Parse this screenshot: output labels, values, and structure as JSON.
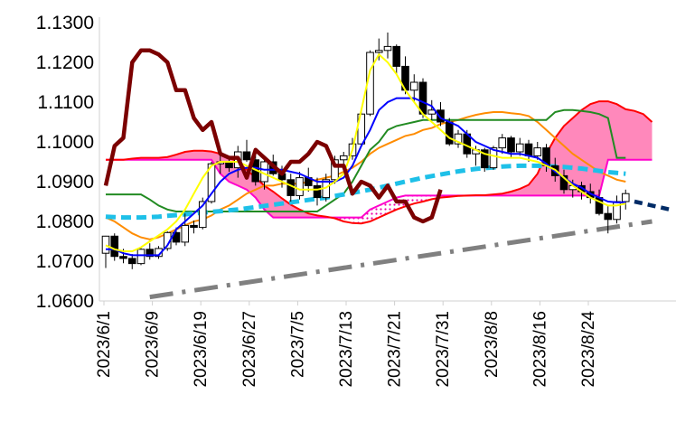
{
  "chart_data": {
    "type": "candlestick-ichimoku",
    "title": "",
    "xlabel": "",
    "ylabel": "",
    "ylim": [
      1.06,
      1.13
    ],
    "y_ticks": [
      "1.0600",
      "1.0700",
      "1.0800",
      "1.0900",
      "1.1000",
      "1.1100",
      "1.1200",
      "1.1300"
    ],
    "x_ticks": [
      "2023/6/1",
      "2023/6/9",
      "2023/6/19",
      "2023/6/27",
      "2023/7/5",
      "2023/7/13",
      "2023/7/21",
      "2023/7/31",
      "2023/8/8",
      "2023/8/16",
      "2023/8/24"
    ],
    "grid": false,
    "colors": {
      "candle_up": "#ffffff",
      "candle_down": "#000000",
      "conversion_line": "#ffff00",
      "base_line": "#0000ff",
      "lagging_span": "#7b0000",
      "leading_span_a": "#ff0000",
      "leading_span_b": "#ff00cc",
      "cloud_fill": "#ff88bb",
      "ma_short": "#ff8c00",
      "ma_mid": "#228b22",
      "ma_long": "#1ec0e8",
      "trend_line": "#808080",
      "projection": "#002b66"
    },
    "candles": [
      [
        1.072,
        1.0764,
        1.0683,
        1.0763
      ],
      [
        1.0763,
        1.077,
        1.0701,
        1.0712
      ],
      [
        1.0712,
        1.0731,
        1.0695,
        1.0707
      ],
      [
        1.0707,
        1.0718,
        1.068,
        1.0694
      ],
      [
        1.0694,
        1.0735,
        1.069,
        1.073
      ],
      [
        1.073,
        1.0745,
        1.0704,
        1.0712
      ],
      [
        1.0712,
        1.0738,
        1.0706,
        1.0732
      ],
      [
        1.0732,
        1.0775,
        1.0726,
        1.0772
      ],
      [
        1.0772,
        1.0785,
        1.074,
        1.0748
      ],
      [
        1.0748,
        1.082,
        1.0738,
        1.079
      ],
      [
        1.079,
        1.0802,
        1.077,
        1.0785
      ],
      [
        1.0785,
        1.086,
        1.078,
        1.085
      ],
      [
        1.085,
        1.095,
        1.0845,
        1.0945
      ],
      [
        1.0945,
        1.0965,
        1.092,
        1.095
      ],
      [
        1.095,
        1.096,
        1.0925,
        1.0935
      ],
      [
        1.0935,
        1.099,
        1.091,
        1.0975
      ],
      [
        1.0975,
        1.1005,
        1.095,
        1.0955
      ],
      [
        1.0955,
        1.097,
        1.089,
        1.09
      ],
      [
        1.09,
        1.096,
        1.088,
        1.095
      ],
      [
        1.095,
        1.0968,
        1.0915,
        1.092
      ],
      [
        1.092,
        1.094,
        1.0885,
        1.0905
      ],
      [
        1.0905,
        1.092,
        1.085,
        1.0865
      ],
      [
        1.0865,
        1.0925,
        1.0855,
        1.091
      ],
      [
        1.091,
        1.0935,
        1.0875,
        1.089
      ],
      [
        1.089,
        1.091,
        1.084,
        1.086
      ],
      [
        1.086,
        1.092,
        1.085,
        1.0905
      ],
      [
        1.0905,
        1.0965,
        1.0895,
        1.0955
      ],
      [
        1.0955,
        1.0975,
        1.0935,
        1.0965
      ],
      [
        1.0965,
        1.101,
        1.0955,
        1.0995
      ],
      [
        1.0995,
        1.108,
        1.099,
        1.107
      ],
      [
        1.107,
        1.123,
        1.1065,
        1.1225
      ],
      [
        1.1225,
        1.126,
        1.1205,
        1.123
      ],
      [
        1.123,
        1.1275,
        1.121,
        1.124
      ],
      [
        1.124,
        1.1245,
        1.117,
        1.119
      ],
      [
        1.119,
        1.1215,
        1.112,
        1.113
      ],
      [
        1.113,
        1.117,
        1.11,
        1.115
      ],
      [
        1.115,
        1.116,
        1.106,
        1.107
      ],
      [
        1.107,
        1.1105,
        1.1055,
        1.108
      ],
      [
        1.108,
        1.11,
        1.104,
        1.105
      ],
      [
        1.105,
        1.106,
        1.099,
        1.0995
      ],
      [
        1.0995,
        1.103,
        1.0985,
        1.102
      ],
      [
        1.102,
        1.103,
        1.096,
        1.097
      ],
      [
        1.097,
        1.099,
        1.094,
        1.098
      ],
      [
        1.098,
        1.0985,
        1.0925,
        1.0935
      ],
      [
        1.0935,
        1.099,
        1.093,
        1.0985
      ],
      [
        1.0985,
        1.102,
        1.097,
        1.101
      ],
      [
        1.101,
        1.1015,
        1.096,
        1.0975
      ],
      [
        1.0975,
        1.101,
        1.0965,
        1.0995
      ],
      [
        1.0995,
        1.1005,
        1.095,
        1.0965
      ],
      [
        1.0965,
        1.1,
        1.0955,
        1.0985
      ],
      [
        1.0985,
        1.0995,
        1.0925,
        1.094
      ],
      [
        1.094,
        1.096,
        1.09,
        1.0915
      ],
      [
        1.0915,
        1.093,
        1.087,
        1.088
      ],
      [
        1.088,
        1.0905,
        1.086,
        1.089
      ],
      [
        1.089,
        1.09,
        1.0855,
        1.0875
      ],
      [
        1.0875,
        1.0895,
        1.0845,
        1.086
      ],
      [
        1.086,
        1.088,
        1.0815,
        1.082
      ],
      [
        1.082,
        1.084,
        1.077,
        1.0805
      ],
      [
        1.0805,
        1.0865,
        1.0795,
        1.085
      ],
      [
        1.085,
        1.088,
        1.083,
        1.087
      ]
    ],
    "projection_points": [
      1.085,
      1.0845,
      1.084,
      1.0835,
      1.083
    ],
    "line_series": {
      "lagging_span": [
        1.089,
        1.099,
        1.101,
        1.12,
        1.123,
        1.123,
        1.122,
        1.12,
        1.113,
        1.113,
        1.106,
        1.103,
        1.105,
        1.097,
        1.096,
        1.096,
        1.091,
        1.098,
        1.096,
        1.094,
        1.092,
        1.095,
        1.095,
        1.097,
        1.1,
        1.099,
        1.094,
        1.094,
        1.087,
        1.09,
        1.089,
        1.086,
        1.089,
        1.085,
        1.085,
        1.081,
        1.08,
        1.081,
        1.088
      ],
      "conversion_line": [
        1.074,
        1.073,
        1.0725,
        1.0725,
        1.0735,
        1.075,
        1.0765,
        1.078,
        1.08,
        1.083,
        1.087,
        1.091,
        1.094,
        1.095,
        1.095,
        1.095,
        1.094,
        1.093,
        1.092,
        1.091,
        1.09,
        1.089,
        1.088,
        1.088,
        1.088,
        1.0885,
        1.09,
        1.092,
        1.098,
        1.108,
        1.118,
        1.122,
        1.12,
        1.117,
        1.113,
        1.11,
        1.107,
        1.105,
        1.103,
        1.101,
        1.1,
        1.099,
        1.098,
        1.097,
        1.0965,
        1.096,
        1.096,
        1.096,
        1.0955,
        1.095,
        1.094,
        1.093,
        1.091,
        1.089,
        1.0875,
        1.086,
        1.085,
        1.084,
        1.084,
        1.0845
      ],
      "base_line": [
        1.073,
        1.073,
        1.072,
        1.0715,
        1.0715,
        1.0715,
        1.0715,
        1.074,
        1.078,
        1.08,
        1.082,
        1.084,
        1.087,
        1.09,
        1.092,
        1.093,
        1.0935,
        1.0935,
        1.093,
        1.093,
        1.093,
        1.0925,
        1.092,
        1.091,
        1.09,
        1.09,
        1.09,
        1.091,
        1.094,
        1.099,
        1.103,
        1.108,
        1.11,
        1.111,
        1.111,
        1.111,
        1.11,
        1.109,
        1.106,
        1.105,
        1.104,
        1.102,
        1.1,
        1.099,
        1.098,
        1.0975,
        1.097,
        1.097,
        1.0965,
        1.096,
        1.0945,
        1.0925,
        1.091,
        1.0895,
        1.0885,
        1.087,
        1.086,
        1.085,
        1.0848,
        1.0848
      ],
      "ma_short": [
        1.081,
        1.08,
        1.0785,
        1.077,
        1.076,
        1.0755,
        1.076,
        1.077,
        1.078,
        1.079,
        1.08,
        1.0805,
        1.0815,
        1.083,
        1.084,
        1.0855,
        1.087,
        1.088,
        1.089,
        1.089,
        1.0895,
        1.0895,
        1.0895,
        1.09,
        1.0905,
        1.091,
        1.0915,
        1.0925,
        1.0935,
        1.095,
        1.097,
        1.0985,
        1.0995,
        1.1005,
        1.1015,
        1.102,
        1.103,
        1.1035,
        1.1045,
        1.105,
        1.1055,
        1.1062,
        1.1068,
        1.1072,
        1.1075,
        1.1075,
        1.1072,
        1.107,
        1.1065,
        1.105,
        1.103,
        1.101,
        1.099,
        1.097,
        1.0955,
        1.094,
        1.0925,
        1.0915,
        1.0905,
        1.09
      ],
      "ma_mid": [
        1.0868,
        1.0868,
        1.0868,
        1.0868,
        1.0868,
        1.0855,
        1.084,
        1.083,
        1.0825,
        1.0825,
        1.0825,
        1.0825,
        1.0825,
        1.0825,
        1.0825,
        1.0825,
        1.0825,
        1.0825,
        1.0825,
        1.0825,
        1.0825,
        1.0825,
        1.0825,
        1.0825,
        1.0825,
        1.084,
        1.0855,
        1.087,
        1.09,
        1.094,
        1.098,
        1.1,
        1.103,
        1.104,
        1.1045,
        1.105,
        1.1055,
        1.1055,
        1.1055,
        1.1055,
        1.1055,
        1.1055,
        1.1055,
        1.1055,
        1.1055,
        1.1055,
        1.1055,
        1.1055,
        1.1055,
        1.1055,
        1.1055,
        1.1075,
        1.108,
        1.108,
        1.1078,
        1.1075,
        1.107,
        1.106,
        1.096,
        1.096
      ],
      "ma_long": [
        1.0812,
        1.0811,
        1.081,
        1.081,
        1.081,
        1.0811,
        1.0812,
        1.0814,
        1.0816,
        1.0818,
        1.082,
        1.0822,
        1.0824,
        1.0826,
        1.0828,
        1.083,
        1.0833,
        1.0836,
        1.0839,
        1.0842,
        1.0845,
        1.0848,
        1.0851,
        1.0854,
        1.0857,
        1.086,
        1.0864,
        1.0868,
        1.0872,
        1.0876,
        1.088,
        1.0885,
        1.089,
        1.0895,
        1.09,
        1.0905,
        1.091,
        1.0914,
        1.0918,
        1.0922,
        1.0926,
        1.0929,
        1.0932,
        1.0934,
        1.0936,
        1.0938,
        1.0939,
        1.094,
        1.094,
        1.094,
        1.0939,
        1.0938,
        1.0937,
        1.0935,
        1.0933,
        1.093,
        1.0927,
        1.0924,
        1.0922,
        1.092
      ],
      "leading_span_a": [
        1.0955,
        1.0955,
        1.0955,
        1.0958,
        1.096,
        1.096,
        1.096,
        1.0962,
        1.0968,
        1.0975,
        1.0978,
        1.0978,
        1.0976,
        1.097,
        1.096,
        1.095,
        1.093,
        1.091,
        1.089,
        1.0875,
        1.0858,
        1.0842,
        1.083,
        1.082,
        1.0815,
        1.0812,
        1.0808,
        1.08,
        1.0796,
        1.0795,
        1.08,
        1.081,
        1.082,
        1.083,
        1.0838,
        1.0845,
        1.085,
        1.0856,
        1.086,
        1.0862,
        1.0864,
        1.0865,
        1.0866,
        1.0866,
        1.0868,
        1.087,
        1.0875,
        1.0882,
        1.0892,
        1.092,
        1.097,
        1.101,
        1.104,
        1.106,
        1.108,
        1.1095,
        1.1102,
        1.1102,
        1.1095,
        1.1082,
        1.1078,
        1.107,
        1.105
      ],
      "leading_span_b": [
        1.0955,
        1.0955,
        1.0955,
        1.0955,
        1.0955,
        1.0955,
        1.0955,
        1.0955,
        1.0955,
        1.0955,
        1.0955,
        1.0955,
        1.0955,
        1.092,
        1.09,
        1.089,
        1.088,
        1.086,
        1.083,
        1.081,
        1.081,
        1.081,
        1.081,
        1.081,
        1.081,
        1.081,
        1.081,
        1.081,
        1.081,
        1.081,
        1.083,
        1.084,
        1.085,
        1.086,
        1.0865,
        1.0865,
        1.0865,
        1.0865,
        1.0865,
        1.0865,
        1.0865,
        1.0865,
        1.0865,
        1.0865,
        1.0865,
        1.0865,
        1.0865,
        1.0865,
        1.0865,
        1.0865,
        1.0865,
        1.0865,
        1.0865,
        1.0865,
        1.0865,
        1.0865,
        1.0865,
        1.0955,
        1.0955,
        1.0955,
        1.0955,
        1.0955,
        1.0955
      ],
      "trend_line": [
        [
          5,
          1.061
        ],
        [
          62,
          1.08
        ]
      ]
    }
  }
}
